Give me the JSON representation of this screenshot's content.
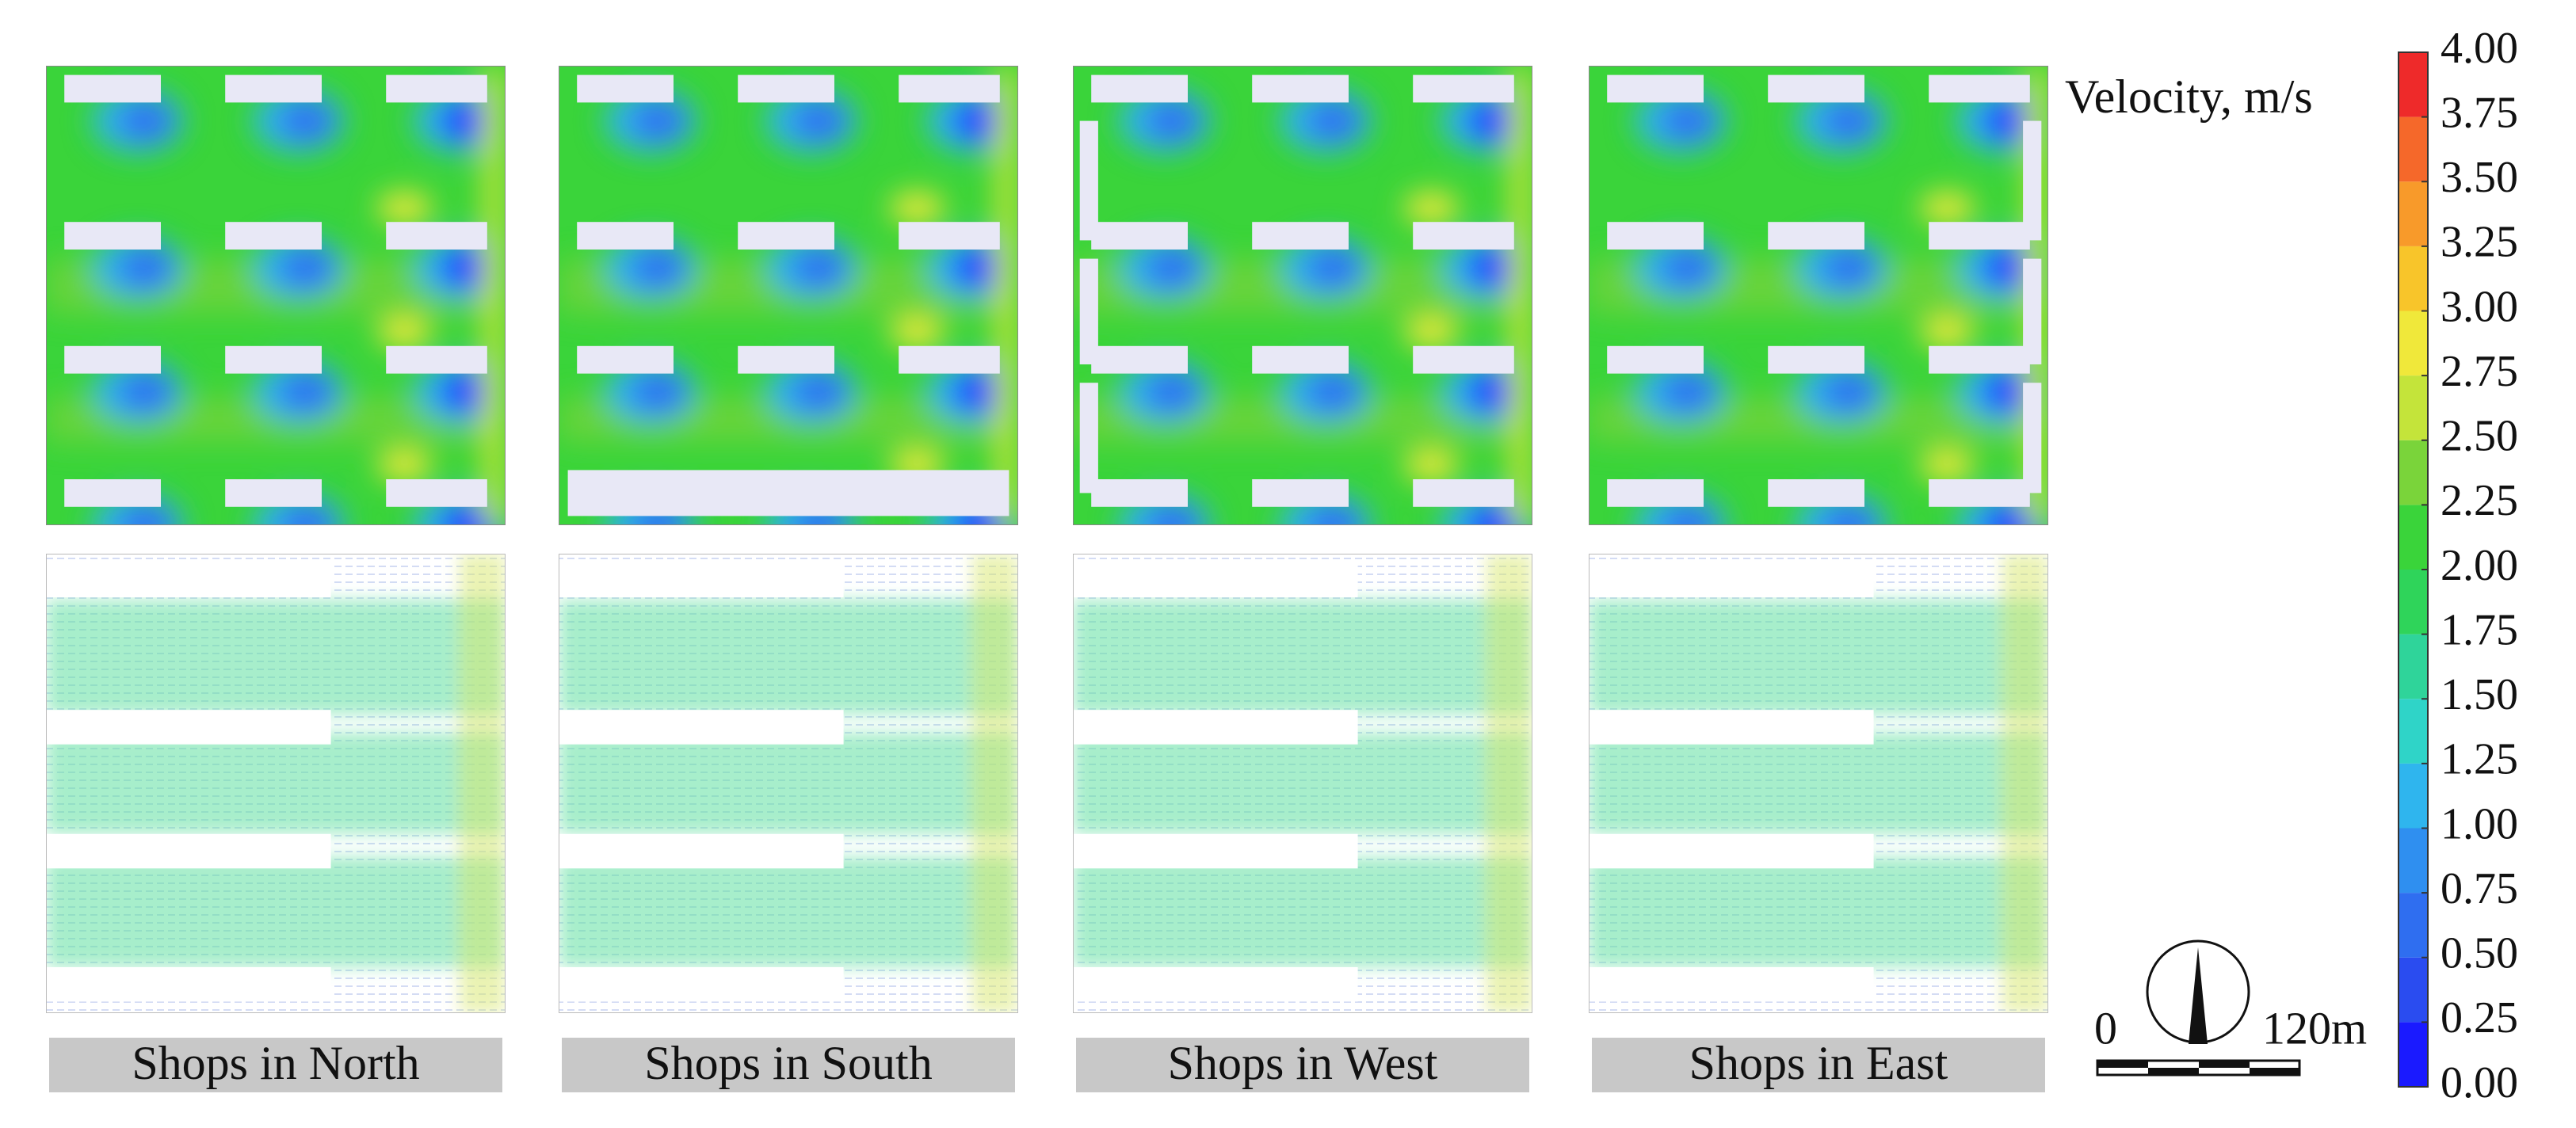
{
  "panels": [
    {
      "label": "Shops in North"
    },
    {
      "label": "Shops in South"
    },
    {
      "label": "Shops in West"
    },
    {
      "label": "Shops in East"
    }
  ],
  "colorbar": {
    "title": "Velocity, m/s",
    "ticks": [
      {
        "value": 0,
        "label": "0.00"
      },
      {
        "value": 0.25,
        "label": "0.25"
      },
      {
        "value": 0.5,
        "label": "0.50"
      },
      {
        "value": 0.75,
        "label": "0.75"
      },
      {
        "value": 1,
        "label": "1.00"
      },
      {
        "value": 1.25,
        "label": "1.25"
      },
      {
        "value": 1.5,
        "label": "1.50"
      },
      {
        "value": 1.75,
        "label": "1.75"
      },
      {
        "value": 2,
        "label": "2.00"
      },
      {
        "value": 2.25,
        "label": "2.25"
      },
      {
        "value": 2.5,
        "label": "2.50"
      },
      {
        "value": 2.75,
        "label": "2.75"
      },
      {
        "value": 3,
        "label": "3.00"
      },
      {
        "value": 3.25,
        "label": "3.25"
      },
      {
        "value": 3.5,
        "label": "3.50"
      },
      {
        "value": 3.75,
        "label": "3.75"
      },
      {
        "value": 4,
        "label": "4.00"
      }
    ],
    "colors": [
      "#1a1aff",
      "#2a4cf0",
      "#2f6ef0",
      "#2f8ff0",
      "#2fb5ee",
      "#2fd4c8",
      "#2fd49a",
      "#2fd45a",
      "#3ad43a",
      "#7ad43a",
      "#c4e43a",
      "#f0e83a",
      "#f8c52a",
      "#f89a2a",
      "#f5682a",
      "#ee2a2a"
    ]
  },
  "scale_bar": {
    "start": "0",
    "end": "120m"
  }
}
